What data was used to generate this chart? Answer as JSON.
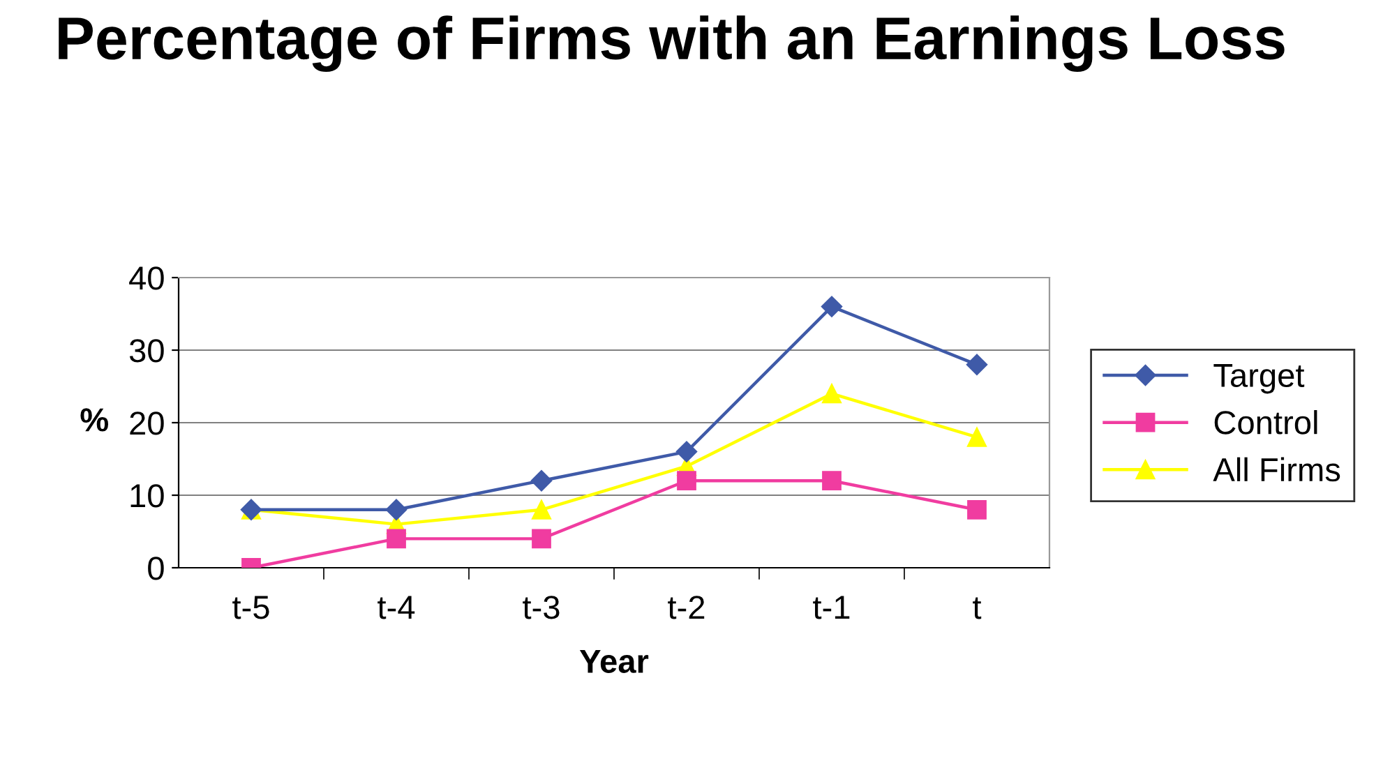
{
  "chart_data": {
    "type": "line",
    "title": "Percentage of Firms with an Earnings Loss",
    "xlabel": "Year",
    "ylabel": "%",
    "categories": [
      "t-5",
      "t-4",
      "t-3",
      "t-2",
      "t-1",
      "t"
    ],
    "series": [
      {
        "name": "Target",
        "color": "#3f5aa8",
        "marker": "diamond",
        "values": [
          8,
          8,
          12,
          16,
          36,
          28
        ]
      },
      {
        "name": "Control",
        "color": "#f03ca0",
        "marker": "square",
        "values": [
          0,
          4,
          4,
          12,
          12,
          8
        ]
      },
      {
        "name": "All Firms",
        "color": "#ffff00",
        "marker": "triangle",
        "values": [
          8,
          6,
          8,
          14,
          24,
          18
        ]
      }
    ],
    "ylim": [
      0,
      40
    ],
    "yticks": [
      0,
      10,
      20,
      30,
      40
    ],
    "grid": "y",
    "legend": "right"
  }
}
